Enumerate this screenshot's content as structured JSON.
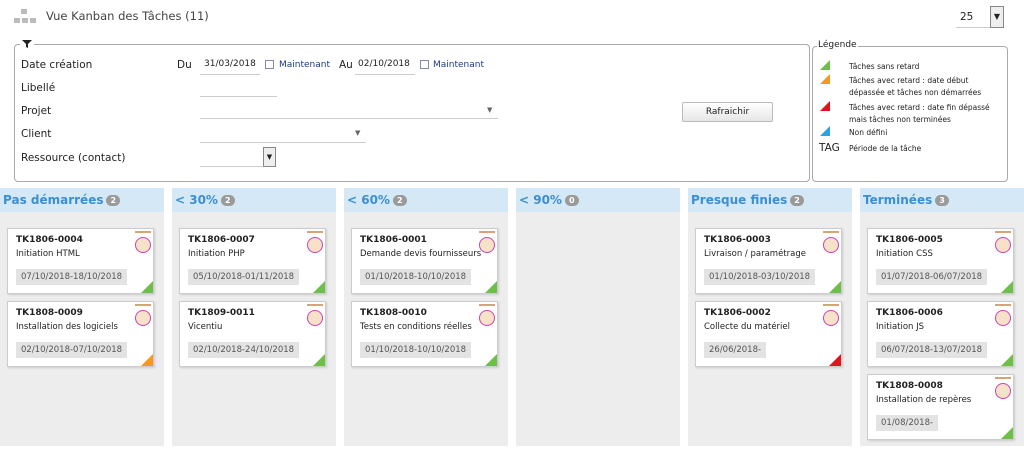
{
  "header": {
    "title": "Vue Kanban des Tâches (11)",
    "page_size": "25"
  },
  "filter": {
    "date_label": "Date création",
    "from_label": "Du",
    "from_date": "31/03/2018",
    "from_now": "Maintenant",
    "to_label": "Au",
    "to_date": "02/10/2018",
    "to_now": "Maintenant",
    "label": "Libellé",
    "project": "Projet",
    "client": "Client",
    "resource": "Ressource (contact)",
    "refresh": "Rafraichir"
  },
  "legend": {
    "title": "Légende",
    "items": [
      {
        "marker_color": "#6cc04a",
        "text": "Tâches sans retard"
      },
      {
        "marker_color": "#f39a1e",
        "text": "Tâches avec retard : date début dépassée et tâches non démarrées"
      },
      {
        "marker_color": "#e2131d",
        "text": "Tâches avec retard : date fin dépassé mais tâches non terminées"
      },
      {
        "marker_color": "#2aa3e0",
        "text": "Non défini"
      },
      {
        "marker": "TAG",
        "text": "Période de la tâche"
      }
    ]
  },
  "columns": [
    {
      "name": "Pas démarrées",
      "count": "2",
      "cards": [
        {
          "id": "TK1806-0004",
          "label": "Initiation HTML",
          "dates": "07/10/2018-18/10/2018",
          "status_color": "#6cc04a"
        },
        {
          "id": "TK1808-0009",
          "label": "Installation des logiciels",
          "dates": "02/10/2018-07/10/2018",
          "status_color": "#f39a1e"
        }
      ]
    },
    {
      "name": "< 30%",
      "count": "2",
      "cards": [
        {
          "id": "TK1806-0007",
          "label": "Initiation PHP",
          "dates": "05/10/2018-01/11/2018",
          "status_color": "#6cc04a"
        },
        {
          "id": "TK1809-0011",
          "label": "Vicentiu",
          "dates": "02/10/2018-24/10/2018",
          "status_color": "#6cc04a"
        }
      ]
    },
    {
      "name": "< 60%",
      "count": "2",
      "cards": [
        {
          "id": "TK1806-0001",
          "label": "Demande devis fournisseurs",
          "dates": "01/10/2018-10/10/2018",
          "status_color": "#6cc04a"
        },
        {
          "id": "TK1808-0010",
          "label": "Tests en conditions réelles",
          "dates": "01/10/2018-10/10/2018",
          "status_color": "#6cc04a"
        }
      ]
    },
    {
      "name": "< 90%",
      "count": "0",
      "cards": []
    },
    {
      "name": "Presque finies",
      "count": "2",
      "cards": [
        {
          "id": "TK1806-0003",
          "label": "Livraison / paramétrage",
          "dates": "01/10/2018-03/10/2018",
          "status_color": "#6cc04a"
        },
        {
          "id": "TK1806-0002",
          "label": "Collecte du matériel",
          "dates": "26/06/2018-",
          "status_color": "#e2131d"
        }
      ]
    },
    {
      "name": "Terminées",
      "count": "3",
      "cards": [
        {
          "id": "TK1806-0005",
          "label": "Initiation CSS",
          "dates": "01/07/2018-06/07/2018",
          "status_color": "#6cc04a"
        },
        {
          "id": "TK1806-0006",
          "label": "Initiation JS",
          "dates": "06/07/2018-13/07/2018",
          "status_color": "#6cc04a"
        },
        {
          "id": "TK1808-0008",
          "label": "Installation de repères",
          "dates": "01/08/2018-",
          "status_color": "#6cc04a"
        }
      ]
    }
  ]
}
